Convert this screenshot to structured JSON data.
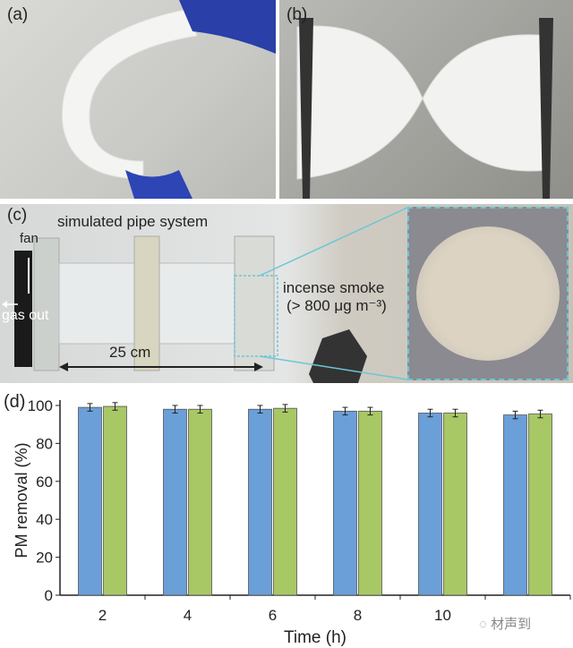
{
  "panels": {
    "a": {
      "label": "(a)"
    },
    "b": {
      "label": "(b)"
    },
    "c": {
      "label": "(c)",
      "title": "simulated pipe system",
      "fan": "fan",
      "gas_out": "gas out",
      "length": "25 cm",
      "smoke": "incense smoke",
      "smoke_conc": "(> 800 μg m⁻³)"
    },
    "d": {
      "label": "(d)"
    }
  },
  "watermark": "材声到",
  "colors": {
    "blue_bar": "#6a9fd8",
    "green_bar": "#a8c765",
    "inset_border": "#6cc6d6"
  },
  "chart_data": {
    "type": "bar",
    "xlabel": "Time (h)",
    "ylabel": "PM removal (%)",
    "categories": [
      "2",
      "4",
      "6",
      "8",
      "10",
      ""
    ],
    "ylim": [
      0,
      100
    ],
    "yticks": [
      0,
      20,
      40,
      60,
      80,
      100
    ],
    "grid": false,
    "series": [
      {
        "values": [
          99,
          98,
          98,
          97,
          96,
          95
        ],
        "errors": [
          2,
          2,
          2,
          2,
          2,
          2
        ],
        "color": "#6a9fd8"
      },
      {
        "values": [
          99.5,
          98,
          98.5,
          97,
          96,
          95.5
        ],
        "errors": [
          2,
          2,
          2,
          2,
          2,
          2
        ],
        "color": "#a8c765"
      }
    ]
  }
}
